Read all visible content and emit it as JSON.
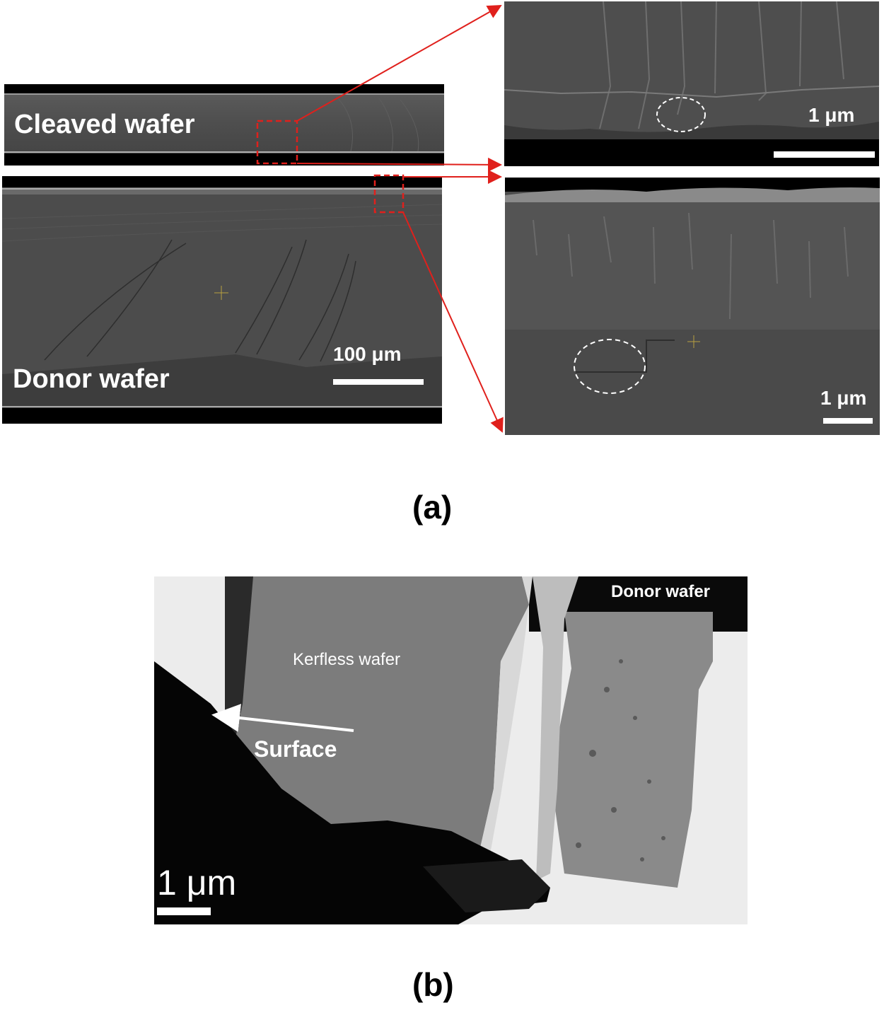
{
  "figure": {
    "part_a": {
      "caption": "(a)",
      "cleaved_wafer_panel": {
        "label": "Cleaved wafer"
      },
      "donor_wafer_panel": {
        "label": "Donor wafer",
        "scale_bar": "100 μm"
      },
      "zoom_top_panel": {
        "scale_bar": "1 μm"
      },
      "zoom_bottom_panel": {
        "scale_bar": "1 μm"
      }
    },
    "part_b": {
      "caption": "(b)",
      "tem_panel": {
        "donor_label": "Donor wafer",
        "kerfless_label": "Kerfless wafer",
        "surface_label": "Surface",
        "scale_bar": "1 μm"
      }
    },
    "colors": {
      "arrow_red": "#e0201c",
      "sem_gray": "#4a4a4a",
      "background": "#ffffff"
    }
  }
}
